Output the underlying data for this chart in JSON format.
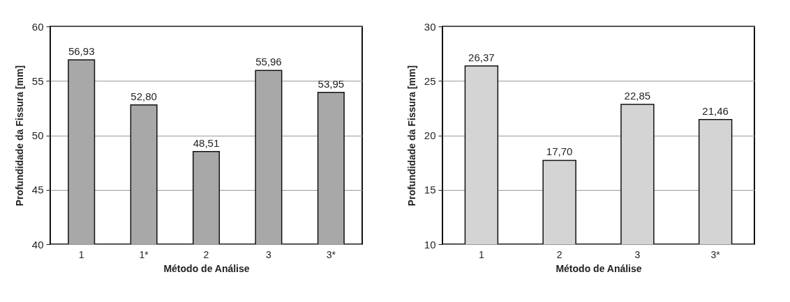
{
  "chart_data": [
    {
      "type": "bar",
      "xlabel": "Método de Análise",
      "ylabel": "Profundidade da Fissura  [mm]",
      "categories": [
        "1",
        "1*",
        "2",
        "3",
        "3*"
      ],
      "values": [
        56.93,
        52.8,
        48.51,
        55.96,
        53.95
      ],
      "value_labels": [
        "56,93",
        "52,80",
        "48,51",
        "55,96",
        "53,95"
      ],
      "color": "#a8a8a8",
      "ylim": [
        40,
        60
      ],
      "yticks": [
        40,
        45,
        50,
        55,
        60
      ],
      "grid": "y"
    },
    {
      "type": "bar",
      "xlabel": "Método de Análise",
      "ylabel": "Profundidade da Fissura  [mm]",
      "categories": [
        "1",
        "2",
        "3",
        "3*"
      ],
      "values": [
        26.37,
        17.7,
        22.85,
        21.46
      ],
      "value_labels": [
        "26,37",
        "17,70",
        "22,85",
        "21,46"
      ],
      "color": "#d4d4d4",
      "ylim": [
        10,
        30
      ],
      "yticks": [
        10,
        15,
        20,
        25,
        30
      ],
      "grid": "y"
    }
  ]
}
